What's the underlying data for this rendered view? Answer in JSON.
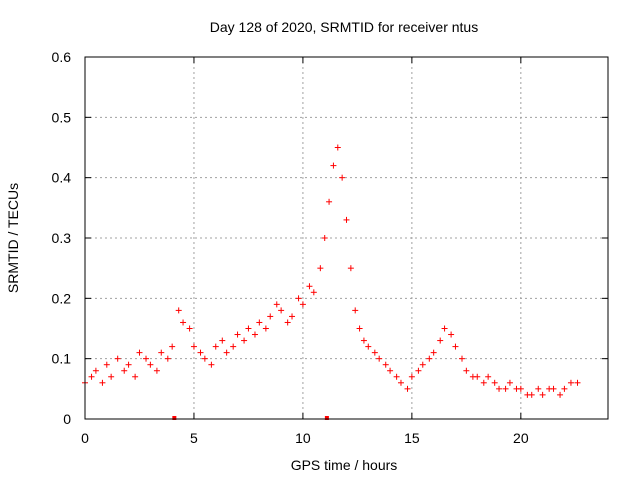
{
  "chart_data": {
    "type": "scatter",
    "title": "Day 128 of 2020, SRMTID for receiver ntus",
    "xlabel": "GPS time / hours",
    "ylabel": "SRMTID / TECUs",
    "xlim": [
      0,
      24
    ],
    "ylim": [
      0,
      0.6
    ],
    "xticks": [
      0,
      5,
      10,
      15,
      20
    ],
    "yticks": [
      0,
      0.1,
      0.2,
      0.3,
      0.4,
      0.5,
      0.6
    ],
    "ytick_labels": [
      "0",
      "0.1",
      "0.2",
      "0.3",
      "0.4",
      "0.5",
      "0.6"
    ],
    "grid": true,
    "marker": "+",
    "color": "#ff0000",
    "gap_markers_hours": [
      4.1,
      11.1
    ],
    "series": [
      {
        "name": "SRMTID",
        "x": [
          0.0,
          0.3,
          0.5,
          0.8,
          1.0,
          1.2,
          1.5,
          1.8,
          2.0,
          2.3,
          2.5,
          2.8,
          3.0,
          3.3,
          3.5,
          3.8,
          4.0,
          4.3,
          4.5,
          4.8,
          5.0,
          5.3,
          5.5,
          5.8,
          6.0,
          6.3,
          6.5,
          6.8,
          7.0,
          7.3,
          7.5,
          7.8,
          8.0,
          8.3,
          8.5,
          8.8,
          9.0,
          9.3,
          9.5,
          9.8,
          10.0,
          10.3,
          10.5,
          10.8,
          11.0,
          11.2,
          11.4,
          11.6,
          11.8,
          12.0,
          12.2,
          12.4,
          12.6,
          12.8,
          13.0,
          13.3,
          13.5,
          13.8,
          14.0,
          14.3,
          14.5,
          14.8,
          15.0,
          15.3,
          15.5,
          15.8,
          16.0,
          16.3,
          16.5,
          16.8,
          17.0,
          17.3,
          17.5,
          17.8,
          18.0,
          18.3,
          18.5,
          18.8,
          19.0,
          19.3,
          19.5,
          19.8,
          20.0,
          20.3,
          20.5,
          20.8,
          21.0,
          21.3,
          21.5,
          21.8,
          22.0,
          22.3,
          22.6
        ],
        "y": [
          0.06,
          0.07,
          0.08,
          0.06,
          0.09,
          0.07,
          0.1,
          0.08,
          0.09,
          0.07,
          0.11,
          0.1,
          0.09,
          0.08,
          0.11,
          0.1,
          0.12,
          0.18,
          0.16,
          0.15,
          0.12,
          0.11,
          0.1,
          0.09,
          0.12,
          0.13,
          0.11,
          0.12,
          0.14,
          0.13,
          0.15,
          0.14,
          0.16,
          0.15,
          0.17,
          0.19,
          0.18,
          0.16,
          0.17,
          0.2,
          0.19,
          0.22,
          0.21,
          0.25,
          0.3,
          0.36,
          0.42,
          0.45,
          0.4,
          0.33,
          0.25,
          0.18,
          0.15,
          0.13,
          0.12,
          0.11,
          0.1,
          0.09,
          0.08,
          0.07,
          0.06,
          0.05,
          0.07,
          0.08,
          0.09,
          0.1,
          0.11,
          0.13,
          0.15,
          0.14,
          0.12,
          0.1,
          0.08,
          0.07,
          0.07,
          0.06,
          0.07,
          0.06,
          0.05,
          0.05,
          0.06,
          0.05,
          0.05,
          0.04,
          0.04,
          0.05,
          0.04,
          0.05,
          0.05,
          0.04,
          0.05,
          0.06,
          0.06
        ]
      }
    ]
  }
}
